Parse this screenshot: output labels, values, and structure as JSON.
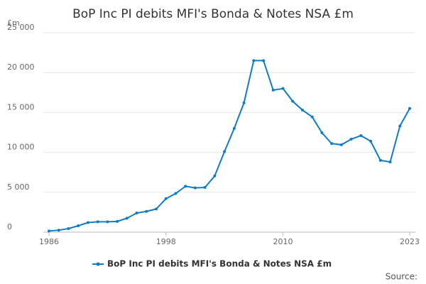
{
  "chart_data": {
    "type": "line",
    "title": "BoP Inc PI debits MFI's Bonda & Notes NSA £m",
    "y_label": "£m",
    "source": "Source:",
    "x": [
      1986,
      1987,
      1988,
      1989,
      1990,
      1991,
      1992,
      1993,
      1994,
      1995,
      1996,
      1997,
      1998,
      1999,
      2000,
      2001,
      2002,
      2003,
      2004,
      2005,
      2006,
      2007,
      2008,
      2009,
      2010,
      2011,
      2012,
      2013,
      2014,
      2015,
      2016,
      2017,
      2018,
      2019,
      2020,
      2021,
      2022,
      2023
    ],
    "series": [
      {
        "name": "BoP Inc PI debits MFI's Bonda & Notes NSA £m",
        "color": "#0f7dc2",
        "values": [
          150,
          250,
          450,
          800,
          1200,
          1300,
          1300,
          1350,
          1750,
          2400,
          2600,
          2900,
          4200,
          4850,
          5750,
          5550,
          5600,
          7050,
          10100,
          13000,
          16200,
          21500,
          21500,
          17800,
          18000,
          16400,
          15300,
          14450,
          12450,
          11100,
          10950,
          11650,
          12100,
          11400,
          9000,
          8800,
          13300,
          15500
        ]
      }
    ],
    "xlim": [
      1986,
      2023
    ],
    "xticks": [
      1986,
      1998,
      2010,
      2023
    ],
    "ylim": [
      0,
      25000
    ],
    "yticks": [
      0,
      {
        "value": 5000,
        "label": "5 000"
      },
      {
        "value": 10000,
        "label": "10 000"
      },
      {
        "value": 15000,
        "label": "15 000"
      },
      {
        "value": 20000,
        "label": "20 000"
      },
      {
        "value": 25000,
        "label": "25 000"
      }
    ],
    "grid": true
  }
}
